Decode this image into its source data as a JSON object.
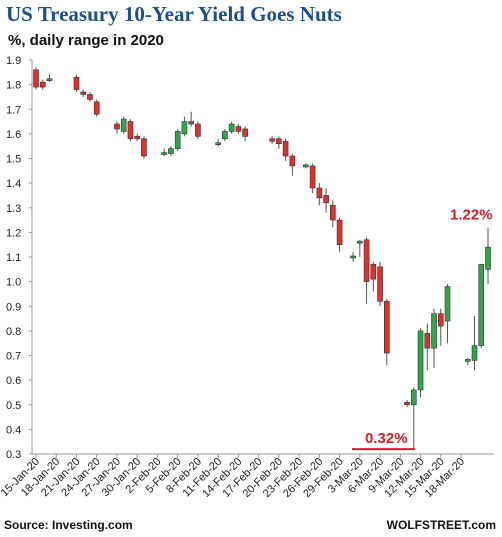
{
  "header": {
    "title": "US Treasury 10-Year Yield Goes Nuts",
    "subtitle": "%, daily range in 2020"
  },
  "footer": {
    "source": "Source: Investing.com",
    "brand": "WOLFSTREET.com"
  },
  "colors": {
    "up": "#2aa84a",
    "down": "#e0302c",
    "annotation": "#d0202a",
    "wick": "#555555"
  },
  "chart_data": {
    "type": "candlestick",
    "title": "US Treasury 10-Year Yield Goes Nuts",
    "subtitle": "%, daily range in 2020",
    "ylim": [
      0.3,
      1.9
    ],
    "yticks": [
      "0.3",
      "0.4",
      "0.5",
      "0.6",
      "0.7",
      "0.8",
      "0.9",
      "1.0",
      "1.1",
      "1.2",
      "1.3",
      "1.4",
      "1.5",
      "1.6",
      "1.7",
      "1.8",
      "1.9"
    ],
    "grid": false,
    "legend": "none",
    "x_labels": [
      "15-Jan-20",
      "18-Jan-20",
      "21-Jan-20",
      "24-Jan-20",
      "27-Jan-20",
      "30-Jan-20",
      "2-Feb-20",
      "5-Feb-20",
      "8-Feb-20",
      "11-Feb-20",
      "14-Feb-20",
      "17-Feb-20",
      "20-Feb-20",
      "23-Feb-20",
      "26-Feb-20",
      "29-Feb-20",
      "3-Mar-20",
      "6-Mar-20",
      "9-Mar-20",
      "12-Mar-20",
      "15-Mar-20",
      "18-Mar-20"
    ],
    "x_label_days": [
      0,
      3,
      6,
      9,
      12,
      15,
      18,
      21,
      24,
      27,
      30,
      33,
      36,
      39,
      42,
      45,
      48,
      51,
      54,
      57,
      60,
      63
    ],
    "candles": [
      {
        "day": 0,
        "open": 1.86,
        "close": 1.79,
        "high": 1.87,
        "low": 1.78
      },
      {
        "day": 1,
        "open": 1.81,
        "close": 1.79,
        "high": 1.82,
        "low": 1.78
      },
      {
        "day": 2,
        "open": 1.82,
        "close": 1.82,
        "high": 1.84,
        "low": 1.81
      },
      {
        "day": 6,
        "open": 1.83,
        "close": 1.78,
        "high": 1.84,
        "low": 1.77
      },
      {
        "day": 7,
        "open": 1.77,
        "close": 1.76,
        "high": 1.78,
        "low": 1.75
      },
      {
        "day": 8,
        "open": 1.76,
        "close": 1.74,
        "high": 1.77,
        "low": 1.73
      },
      {
        "day": 9,
        "open": 1.73,
        "close": 1.68,
        "high": 1.74,
        "low": 1.67
      },
      {
        "day": 12,
        "open": 1.64,
        "close": 1.62,
        "high": 1.65,
        "low": 1.6
      },
      {
        "day": 13,
        "open": 1.61,
        "close": 1.66,
        "high": 1.67,
        "low": 1.6
      },
      {
        "day": 14,
        "open": 1.65,
        "close": 1.58,
        "high": 1.66,
        "low": 1.57
      },
      {
        "day": 15,
        "open": 1.59,
        "close": 1.58,
        "high": 1.6,
        "low": 1.57
      },
      {
        "day": 16,
        "open": 1.58,
        "close": 1.51,
        "high": 1.59,
        "low": 1.5
      },
      {
        "day": 19,
        "open": 1.52,
        "close": 1.52,
        "high": 1.54,
        "low": 1.51
      },
      {
        "day": 20,
        "open": 1.52,
        "close": 1.54,
        "high": 1.55,
        "low": 1.51
      },
      {
        "day": 21,
        "open": 1.54,
        "close": 1.61,
        "high": 1.62,
        "low": 1.53
      },
      {
        "day": 22,
        "open": 1.6,
        "close": 1.65,
        "high": 1.67,
        "low": 1.59
      },
      {
        "day": 23,
        "open": 1.65,
        "close": 1.64,
        "high": 1.69,
        "low": 1.63
      },
      {
        "day": 24,
        "open": 1.64,
        "close": 1.59,
        "high": 1.65,
        "low": 1.58
      },
      {
        "day": 27,
        "open": 1.56,
        "close": 1.56,
        "high": 1.58,
        "low": 1.55
      },
      {
        "day": 28,
        "open": 1.58,
        "close": 1.61,
        "high": 1.62,
        "low": 1.57
      },
      {
        "day": 29,
        "open": 1.61,
        "close": 1.64,
        "high": 1.65,
        "low": 1.6
      },
      {
        "day": 30,
        "open": 1.63,
        "close": 1.61,
        "high": 1.64,
        "low": 1.6
      },
      {
        "day": 31,
        "open": 1.62,
        "close": 1.59,
        "high": 1.63,
        "low": 1.57
      },
      {
        "day": 35,
        "open": 1.58,
        "close": 1.57,
        "high": 1.59,
        "low": 1.56
      },
      {
        "day": 36,
        "open": 1.58,
        "close": 1.56,
        "high": 1.59,
        "low": 1.54
      },
      {
        "day": 37,
        "open": 1.57,
        "close": 1.51,
        "high": 1.58,
        "low": 1.49
      },
      {
        "day": 38,
        "open": 1.51,
        "close": 1.47,
        "high": 1.52,
        "low": 1.43
      },
      {
        "day": 40,
        "open": 1.47,
        "close": 1.47,
        "high": 1.48,
        "low": 1.46
      },
      {
        "day": 41,
        "open": 1.47,
        "close": 1.38,
        "high": 1.48,
        "low": 1.36
      },
      {
        "day": 42,
        "open": 1.38,
        "close": 1.34,
        "high": 1.4,
        "low": 1.31
      },
      {
        "day": 43,
        "open": 1.35,
        "close": 1.32,
        "high": 1.38,
        "low": 1.28
      },
      {
        "day": 44,
        "open": 1.31,
        "close": 1.25,
        "high": 1.33,
        "low": 1.22
      },
      {
        "day": 45,
        "open": 1.25,
        "close": 1.15,
        "high": 1.26,
        "low": 1.12
      },
      {
        "day": 47,
        "open": 1.1,
        "close": 1.1,
        "high": 1.12,
        "low": 1.08
      },
      {
        "day": 48,
        "open": 1.16,
        "close": 1.16,
        "high": 1.17,
        "low": 1.1
      },
      {
        "day": 49,
        "open": 1.17,
        "close": 1.0,
        "high": 1.18,
        "low": 0.91
      },
      {
        "day": 50,
        "open": 1.07,
        "close": 1.01,
        "high": 1.08,
        "low": 0.96
      },
      {
        "day": 51,
        "open": 1.06,
        "close": 0.92,
        "high": 1.08,
        "low": 0.9
      },
      {
        "day": 52,
        "open": 0.92,
        "close": 0.71,
        "high": 0.93,
        "low": 0.66
      },
      {
        "day": 55,
        "open": 0.51,
        "close": 0.5,
        "high": 0.52,
        "low": 0.49
      },
      {
        "day": 56,
        "open": 0.5,
        "close": 0.56,
        "high": 0.57,
        "low": 0.32
      },
      {
        "day": 57,
        "open": 0.56,
        "close": 0.8,
        "high": 0.81,
        "low": 0.53
      },
      {
        "day": 58,
        "open": 0.79,
        "close": 0.73,
        "high": 0.83,
        "low": 0.64
      },
      {
        "day": 59,
        "open": 0.73,
        "close": 0.87,
        "high": 0.89,
        "low": 0.65
      },
      {
        "day": 60,
        "open": 0.87,
        "close": 0.82,
        "high": 0.89,
        "low": 0.74
      },
      {
        "day": 61,
        "open": 0.84,
        "close": 0.98,
        "high": 0.99,
        "low": 0.75
      },
      {
        "day": 64,
        "open": 0.68,
        "close": 0.68,
        "high": 0.69,
        "low": 0.66
      },
      {
        "day": 65,
        "open": 0.68,
        "close": 0.74,
        "high": 0.86,
        "low": 0.64
      },
      {
        "day": 66,
        "open": 0.74,
        "close": 1.07,
        "high": 1.07,
        "low": 0.73
      },
      {
        "day": 67,
        "open": 1.05,
        "close": 1.14,
        "high": 1.22,
        "low": 0.99
      }
    ],
    "annotations": [
      {
        "text": "1.22%",
        "value": 1.22
      },
      {
        "text": "0.32%",
        "value": 0.32
      }
    ]
  }
}
